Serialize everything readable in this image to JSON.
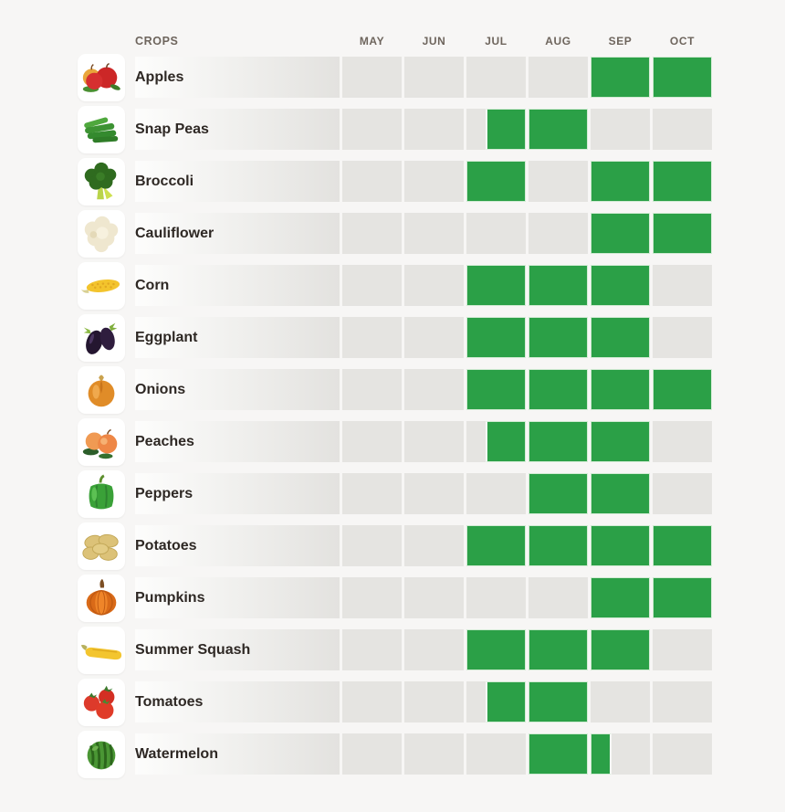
{
  "header": {
    "crops_label": "CROPS"
  },
  "chart_data": {
    "type": "heatmap",
    "x_labels": [
      "MAY",
      "JUN",
      "JUL",
      "AUG",
      "SEP",
      "OCT"
    ],
    "cell_encoding": {
      "0": "not in season",
      "1": "in season full month",
      "object": "partial month, from/to are fractions of the month"
    },
    "rows": [
      {
        "label": "Apples",
        "icon": "apples-icon",
        "months": [
          0,
          0,
          0,
          0,
          1,
          1
        ]
      },
      {
        "label": "Snap Peas",
        "icon": "snap-peas-icon",
        "months": [
          0,
          0,
          {
            "from": 0.33,
            "to": 1
          },
          1,
          0,
          0
        ]
      },
      {
        "label": "Broccoli",
        "icon": "broccoli-icon",
        "months": [
          0,
          0,
          1,
          0,
          1,
          1
        ]
      },
      {
        "label": "Cauliflower",
        "icon": "cauliflower-icon",
        "months": [
          0,
          0,
          0,
          0,
          1,
          1
        ]
      },
      {
        "label": "Corn",
        "icon": "corn-icon",
        "months": [
          0,
          0,
          1,
          1,
          1,
          0
        ]
      },
      {
        "label": "Eggplant",
        "icon": "eggplant-icon",
        "months": [
          0,
          0,
          1,
          1,
          1,
          0
        ]
      },
      {
        "label": "Onions",
        "icon": "onions-icon",
        "months": [
          0,
          0,
          1,
          1,
          1,
          1
        ]
      },
      {
        "label": "Peaches",
        "icon": "peaches-icon",
        "months": [
          0,
          0,
          {
            "from": 0.33,
            "to": 1
          },
          1,
          1,
          0
        ]
      },
      {
        "label": "Peppers",
        "icon": "peppers-icon",
        "months": [
          0,
          0,
          0,
          1,
          1,
          0
        ]
      },
      {
        "label": "Potatoes",
        "icon": "potatoes-icon",
        "months": [
          0,
          0,
          1,
          1,
          1,
          1
        ]
      },
      {
        "label": "Pumpkins",
        "icon": "pumpkins-icon",
        "months": [
          0,
          0,
          0,
          0,
          1,
          1
        ]
      },
      {
        "label": "Summer Squash",
        "icon": "summer-squash-icon",
        "months": [
          0,
          0,
          1,
          1,
          1,
          0
        ]
      },
      {
        "label": "Tomatoes",
        "icon": "tomatoes-icon",
        "months": [
          0,
          0,
          {
            "from": 0.33,
            "to": 1
          },
          1,
          0,
          0
        ]
      },
      {
        "label": "Watermelon",
        "icon": "watermelon-icon",
        "months": [
          0,
          0,
          0,
          1,
          {
            "from": 0,
            "to": 0.35
          },
          0
        ]
      }
    ],
    "colors": {
      "in_season": "#2ba047",
      "in_season_border": "#d2ebd4",
      "out_of_season": "#e5e4e1",
      "header_text": "#6e655d",
      "crop_label_text": "#2e2824",
      "background": "#f7f6f5"
    },
    "legend_position": "none",
    "grid": "off"
  }
}
